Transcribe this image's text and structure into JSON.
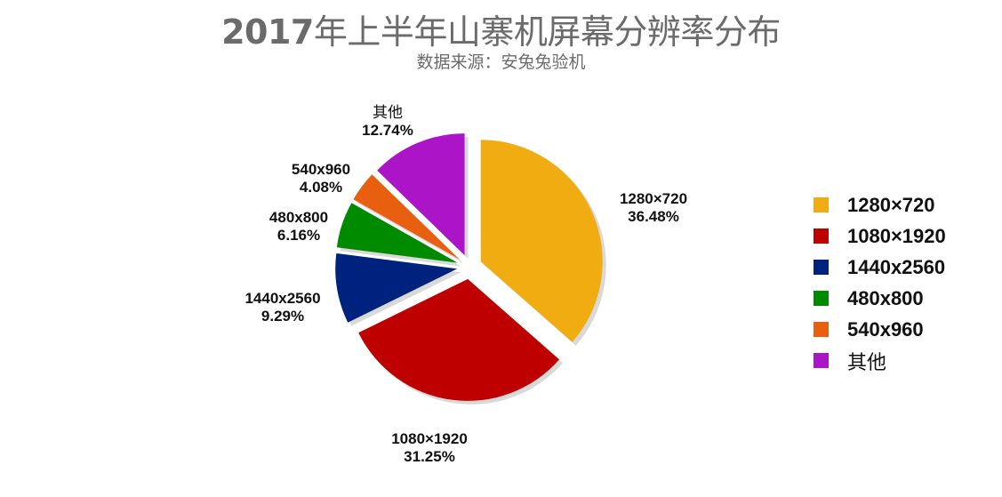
{
  "header": {
    "title_year": "2017",
    "title_rest": "年上半年山寨机屏幕分辨率分布",
    "subtitle": "数据来源：安兔兔验机"
  },
  "chart_data": {
    "type": "pie",
    "title": "2017年上半年山寨机屏幕分辨率分布",
    "subtitle": "数据来源：安兔兔验机",
    "categories": [
      "1280×720",
      "1080×1920",
      "1440x2560",
      "480x800",
      "540x960",
      "其他"
    ],
    "values": [
      36.48,
      31.25,
      9.29,
      6.16,
      4.08,
      12.74
    ],
    "unit": "%",
    "colors": [
      "#f0ac10",
      "#bf0000",
      "#00227f",
      "#008a00",
      "#e8600f",
      "#ac14c8"
    ],
    "exploded": true,
    "start_angle": "12 o'clock, clockwise",
    "legend_position": "right"
  },
  "labels": [
    {
      "name": "1280×720",
      "pct": "36.48%"
    },
    {
      "name": "1080×1920",
      "pct": "31.25%"
    },
    {
      "name": "1440x2560",
      "pct": "9.29%"
    },
    {
      "name": "480x800",
      "pct": "6.16%"
    },
    {
      "name": "540x960",
      "pct": "4.08%"
    },
    {
      "name": "其他",
      "pct": "12.74%"
    }
  ],
  "legend": [
    {
      "label": "1280×720",
      "color": "#f0ac10"
    },
    {
      "label": "1080×1920",
      "color": "#bf0000"
    },
    {
      "label": "1440x2560",
      "color": "#00227f"
    },
    {
      "label": "480x800",
      "color": "#008a00"
    },
    {
      "label": "540x960",
      "color": "#e8600f"
    },
    {
      "label": "其他",
      "color": "#ac14c8"
    }
  ]
}
